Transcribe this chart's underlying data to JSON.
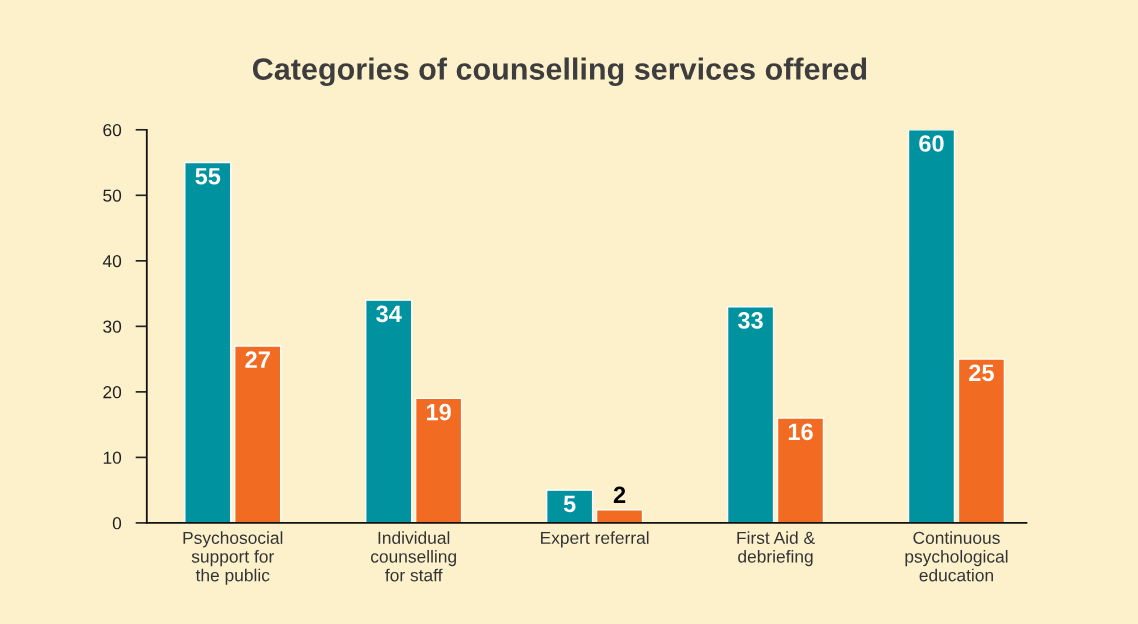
{
  "chart_data": {
    "type": "bar",
    "title": "Categories of counselling services offered",
    "categories": [
      "Psychosocial\nsupport for\nthe public",
      "Individual\ncounselling\nfor staff",
      "Expert referral",
      "First Aid &\ndebriefing",
      "Continuous\npsychological\neducation"
    ],
    "series": [
      {
        "color": "#00939f",
        "values": [
          55,
          34,
          5,
          33,
          60
        ]
      },
      {
        "color": "#f26b23",
        "values": [
          27,
          19,
          2,
          16,
          25
        ]
      }
    ],
    "ylim": [
      0,
      60
    ],
    "yticks": [
      0,
      10,
      20,
      30,
      40,
      50,
      60
    ],
    "grid": false,
    "legend": false,
    "data_labels": true
  }
}
